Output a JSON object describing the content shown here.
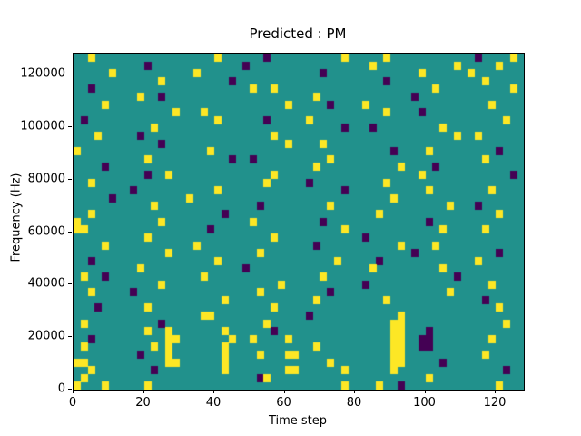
{
  "chart_data": {
    "type": "heatmap",
    "title": "Predicted : PM",
    "xlabel": "Time step",
    "ylabel": "Frequency (Hz)",
    "xlim": [
      0,
      128
    ],
    "ylim": [
      0,
      128000
    ],
    "x_ticks": [
      0,
      20,
      40,
      60,
      80,
      100,
      120
    ],
    "y_ticks": [
      0,
      20000,
      40000,
      60000,
      80000,
      100000,
      120000
    ],
    "grid": {
      "cols": 64,
      "rows": 43
    },
    "colors": {
      "background": "#21918c",
      "high": "#fde725",
      "low": "#440154",
      "spine": "#000000",
      "text": "#000000"
    },
    "legend": "none",
    "cells_yellow": [
      [
        2,
        0
      ],
      [
        20,
        0
      ],
      [
        38,
        0
      ],
      [
        44,
        0
      ],
      [
        62,
        0
      ],
      [
        42,
        1
      ],
      [
        54,
        1
      ],
      [
        60,
        1
      ],
      [
        5,
        2
      ],
      [
        17,
        2
      ],
      [
        49,
        2
      ],
      [
        56,
        2
      ],
      [
        12,
        3
      ],
      [
        58,
        3
      ],
      [
        25,
        4
      ],
      [
        28,
        4
      ],
      [
        51,
        4
      ],
      [
        62,
        4
      ],
      [
        9,
        5
      ],
      [
        34,
        5
      ],
      [
        4,
        6
      ],
      [
        30,
        6
      ],
      [
        41,
        6
      ],
      [
        59,
        6
      ],
      [
        14,
        7
      ],
      [
        18,
        7
      ],
      [
        44,
        7
      ],
      [
        20,
        8
      ],
      [
        33,
        8
      ],
      [
        61,
        8
      ],
      [
        11,
        9
      ],
      [
        52,
        9
      ],
      [
        3,
        10
      ],
      [
        28,
        10
      ],
      [
        54,
        10
      ],
      [
        57,
        10
      ],
      [
        30,
        11
      ],
      [
        35,
        11
      ],
      [
        0,
        12
      ],
      [
        19,
        12
      ],
      [
        50,
        12
      ],
      [
        10,
        13
      ],
      [
        36,
        13
      ],
      [
        58,
        13
      ],
      [
        34,
        14
      ],
      [
        46,
        14
      ],
      [
        13,
        15
      ],
      [
        28,
        15
      ],
      [
        49,
        15
      ],
      [
        2,
        16
      ],
      [
        27,
        16
      ],
      [
        44,
        16
      ],
      [
        20,
        17
      ],
      [
        50,
        17
      ],
      [
        59,
        17
      ],
      [
        16,
        18
      ],
      [
        45,
        18
      ],
      [
        11,
        19
      ],
      [
        36,
        19
      ],
      [
        53,
        19
      ],
      [
        2,
        20
      ],
      [
        43,
        20
      ],
      [
        60,
        20
      ],
      [
        0,
        21
      ],
      [
        12,
        21
      ],
      [
        25,
        21
      ],
      [
        0,
        22
      ],
      [
        1,
        22
      ],
      [
        38,
        22
      ],
      [
        52,
        22
      ],
      [
        58,
        22
      ],
      [
        10,
        23
      ],
      [
        28,
        23
      ],
      [
        4,
        24
      ],
      [
        17,
        24
      ],
      [
        46,
        24
      ],
      [
        51,
        24
      ],
      [
        13,
        25
      ],
      [
        26,
        25
      ],
      [
        20,
        26
      ],
      [
        37,
        26
      ],
      [
        57,
        26
      ],
      [
        9,
        27
      ],
      [
        42,
        27
      ],
      [
        52,
        27
      ],
      [
        1,
        28
      ],
      [
        18,
        28
      ],
      [
        35,
        28
      ],
      [
        12,
        29
      ],
      [
        29,
        29
      ],
      [
        59,
        29
      ],
      [
        2,
        30
      ],
      [
        26,
        30
      ],
      [
        53,
        30
      ],
      [
        21,
        31
      ],
      [
        34,
        31
      ],
      [
        44,
        31
      ],
      [
        10,
        32
      ],
      [
        28,
        32
      ],
      [
        60,
        32
      ],
      [
        18,
        33
      ],
      [
        19,
        33
      ],
      [
        46,
        33
      ],
      [
        1,
        34
      ],
      [
        27,
        34
      ],
      [
        45,
        34
      ],
      [
        46,
        34
      ],
      [
        61,
        34
      ],
      [
        10,
        35
      ],
      [
        13,
        35
      ],
      [
        21,
        35
      ],
      [
        45,
        35
      ],
      [
        46,
        35
      ],
      [
        13,
        36
      ],
      [
        14,
        36
      ],
      [
        22,
        36
      ],
      [
        25,
        36
      ],
      [
        30,
        36
      ],
      [
        45,
        36
      ],
      [
        46,
        36
      ],
      [
        59,
        36
      ],
      [
        1,
        37
      ],
      [
        11,
        37
      ],
      [
        13,
        37
      ],
      [
        21,
        37
      ],
      [
        34,
        37
      ],
      [
        45,
        37
      ],
      [
        46,
        37
      ],
      [
        13,
        38
      ],
      [
        21,
        38
      ],
      [
        26,
        38
      ],
      [
        30,
        38
      ],
      [
        31,
        38
      ],
      [
        45,
        38
      ],
      [
        46,
        38
      ],
      [
        58,
        38
      ],
      [
        0,
        39
      ],
      [
        1,
        39
      ],
      [
        13,
        39
      ],
      [
        14,
        39
      ],
      [
        21,
        39
      ],
      [
        36,
        39
      ],
      [
        45,
        39
      ],
      [
        46,
        39
      ],
      [
        2,
        40
      ],
      [
        21,
        40
      ],
      [
        30,
        40
      ],
      [
        31,
        40
      ],
      [
        38,
        40
      ],
      [
        45,
        40
      ],
      [
        1,
        41
      ],
      [
        27,
        41
      ],
      [
        50,
        41
      ],
      [
        0,
        42
      ],
      [
        4,
        42
      ],
      [
        10,
        42
      ],
      [
        38,
        42
      ],
      [
        43,
        42
      ],
      [
        60,
        42
      ]
    ],
    "cells_purple": [
      [
        27,
        0
      ],
      [
        57,
        0
      ],
      [
        10,
        1
      ],
      [
        24,
        1
      ],
      [
        35,
        2
      ],
      [
        22,
        3
      ],
      [
        44,
        3
      ],
      [
        2,
        4
      ],
      [
        12,
        5
      ],
      [
        48,
        5
      ],
      [
        36,
        6
      ],
      [
        49,
        7
      ],
      [
        1,
        8
      ],
      [
        27,
        8
      ],
      [
        38,
        9
      ],
      [
        42,
        9
      ],
      [
        9,
        10
      ],
      [
        12,
        11
      ],
      [
        45,
        12
      ],
      [
        60,
        12
      ],
      [
        22,
        13
      ],
      [
        25,
        13
      ],
      [
        4,
        14
      ],
      [
        51,
        14
      ],
      [
        10,
        15
      ],
      [
        62,
        15
      ],
      [
        33,
        16
      ],
      [
        8,
        17
      ],
      [
        38,
        17
      ],
      [
        5,
        18
      ],
      [
        26,
        19
      ],
      [
        57,
        19
      ],
      [
        21,
        20
      ],
      [
        35,
        21
      ],
      [
        50,
        21
      ],
      [
        19,
        22
      ],
      [
        41,
        23
      ],
      [
        34,
        24
      ],
      [
        48,
        25
      ],
      [
        60,
        25
      ],
      [
        2,
        26
      ],
      [
        43,
        26
      ],
      [
        24,
        27
      ],
      [
        4,
        28
      ],
      [
        54,
        28
      ],
      [
        41,
        29
      ],
      [
        8,
        30
      ],
      [
        36,
        30
      ],
      [
        58,
        31
      ],
      [
        3,
        32
      ],
      [
        33,
        33
      ],
      [
        12,
        34
      ],
      [
        28,
        35
      ],
      [
        50,
        35
      ],
      [
        2,
        36
      ],
      [
        49,
        36
      ],
      [
        50,
        36
      ],
      [
        49,
        37
      ],
      [
        50,
        37
      ],
      [
        9,
        38
      ],
      [
        52,
        39
      ],
      [
        11,
        40
      ],
      [
        61,
        40
      ],
      [
        26,
        41
      ],
      [
        46,
        42
      ]
    ]
  }
}
